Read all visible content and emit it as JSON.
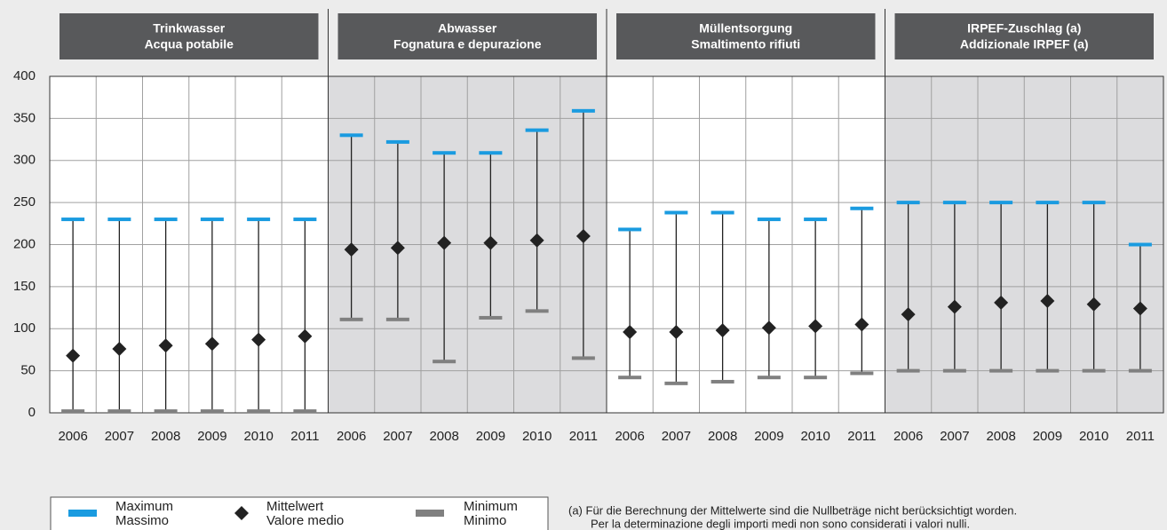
{
  "chart_data": {
    "type": "range",
    "ylim": [
      0,
      400
    ],
    "yticks": [
      0,
      50,
      100,
      150,
      200,
      250,
      300,
      350,
      400
    ],
    "grid": true,
    "groups": [
      {
        "title": [
          "Trinkwasser",
          "Acqua potabile"
        ],
        "shaded": false
      },
      {
        "title": [
          "Abwasser",
          "Fognatura e depurazione"
        ],
        "shaded": true
      },
      {
        "title": [
          "Müllentsorgung",
          "Smaltimento rifiuti"
        ],
        "shaded": false
      },
      {
        "title": [
          "IRPEF-Zuschlag (a)",
          "Addizionale IRPEF (a)"
        ],
        "shaded": true
      }
    ],
    "categories": [
      "2006",
      "2007",
      "2008",
      "2009",
      "2010",
      "2011",
      "2006",
      "2007",
      "2008",
      "2009",
      "2010",
      "2011",
      "2006",
      "2007",
      "2008",
      "2009",
      "2010",
      "2011",
      "2006",
      "2007",
      "2008",
      "2009",
      "2010",
      "2011"
    ],
    "series": [
      {
        "name": [
          "Maximum",
          "Massimo"
        ],
        "color": "#1a9be0",
        "values": [
          230,
          230,
          230,
          230,
          230,
          230,
          330,
          322,
          309,
          309,
          336,
          359,
          218,
          238,
          238,
          230,
          230,
          243,
          250,
          250,
          250,
          250,
          250,
          200
        ]
      },
      {
        "name": [
          "Mittelwert",
          "Valore medio"
        ],
        "color": "#222222",
        "values": [
          68,
          76,
          80,
          82,
          87,
          91,
          194,
          196,
          202,
          202,
          205,
          210,
          96,
          96,
          98,
          101,
          103,
          105,
          117,
          126,
          131,
          133,
          129,
          124
        ]
      },
      {
        "name": [
          "Minimum",
          "Minimo"
        ],
        "color": "#808080",
        "values": [
          2,
          2,
          2,
          2,
          2,
          2,
          111,
          111,
          61,
          113,
          121,
          65,
          42,
          35,
          37,
          42,
          42,
          47,
          50,
          50,
          50,
          50,
          50,
          50
        ]
      }
    ],
    "footnote": [
      "(a) Für die Berechnung der Mittelwerte sind die Nullbeträge nicht berücksichtigt worden.",
      "Per la determinazione degli importi medi non sono considerati i valori nulli."
    ]
  }
}
